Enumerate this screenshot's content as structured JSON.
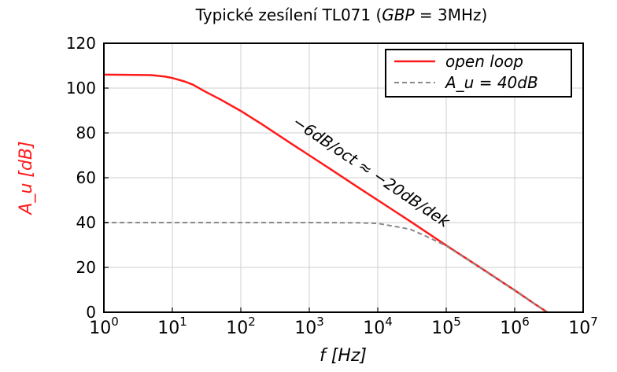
{
  "chart_data": {
    "type": "line",
    "title": "Typické zesílení TL071 (GBP = 3MHz)",
    "title_parts": {
      "prefix": "Typické zesílení TL071 (",
      "italic": "GBP",
      "suffix": " = 3MHz)"
    },
    "xlabel": "f [Hz]",
    "ylabel": "A_u [dB]",
    "xscale": "log",
    "xlim": [
      1,
      10000000
    ],
    "ylim": [
      0,
      120
    ],
    "grid": true,
    "legend_position": "top-right",
    "x_ticks": [
      {
        "value": 1,
        "base": "10",
        "exp": "0"
      },
      {
        "value": 10,
        "base": "10",
        "exp": "1"
      },
      {
        "value": 100,
        "base": "10",
        "exp": "2"
      },
      {
        "value": 1000,
        "base": "10",
        "exp": "3"
      },
      {
        "value": 10000,
        "base": "10",
        "exp": "4"
      },
      {
        "value": 100000,
        "base": "10",
        "exp": "5"
      },
      {
        "value": 1000000,
        "base": "10",
        "exp": "6"
      },
      {
        "value": 10000000,
        "base": "10",
        "exp": "7"
      }
    ],
    "y_ticks": [
      0,
      20,
      40,
      60,
      80,
      100,
      120
    ],
    "annotation": "−6dB/oct ≈ −20dB/dek",
    "series": [
      {
        "name": "open loop",
        "color": "#ff1a1a",
        "style": "solid",
        "x": [
          1,
          3,
          5,
          8,
          10,
          15,
          20,
          30,
          50,
          100,
          200,
          500,
          1000,
          2000,
          5000,
          10000,
          30000,
          100000,
          300000,
          1000000,
          2000000,
          3000000
        ],
        "y": [
          106,
          105.9,
          105.8,
          105.1,
          104.5,
          103,
          101.5,
          98.5,
          95,
          89.8,
          84,
          76,
          70,
          64,
          56,
          50,
          40.5,
          29.8,
          20.3,
          9.8,
          3.5,
          0
        ]
      },
      {
        "name": "A_u = 40dB",
        "color": "#888888",
        "style": "dashed",
        "x": [
          1,
          10,
          100,
          1000,
          5000,
          10000,
          20000,
          30000,
          50000,
          100000,
          300000,
          1000000,
          3000000
        ],
        "y": [
          40,
          40,
          40,
          40,
          39.9,
          39.6,
          38,
          37,
          34,
          29.6,
          20.2,
          9.7,
          0
        ]
      }
    ]
  }
}
